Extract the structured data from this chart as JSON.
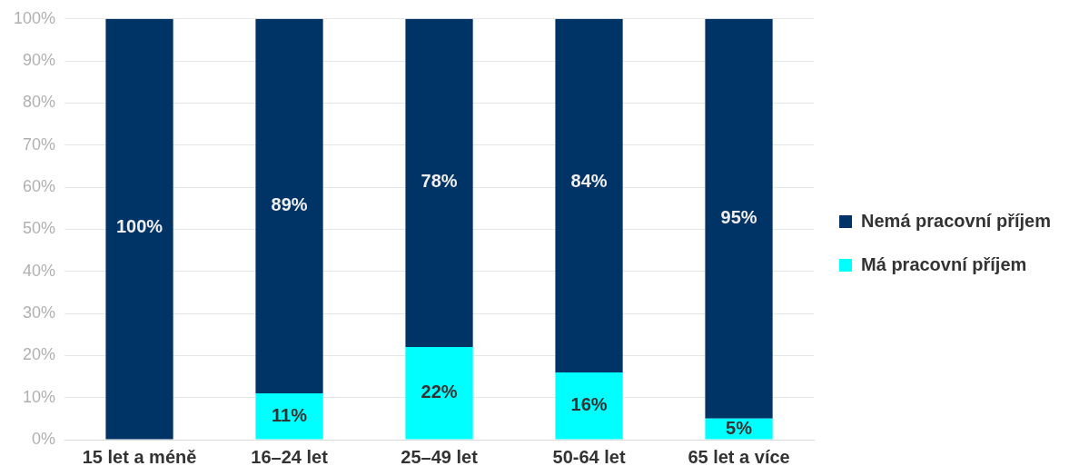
{
  "chart_data": {
    "type": "bar",
    "stacked": true,
    "categories": [
      "15 let a méně",
      "16–24 let",
      "25–49 let",
      "50-64 let",
      "65 let a více"
    ],
    "series": [
      {
        "name": "Má pracovní příjem",
        "color": "#00ffff",
        "values": [
          0,
          11,
          22,
          16,
          5
        ],
        "value_labels": [
          null,
          "11%",
          "22%",
          "16%",
          "5%"
        ]
      },
      {
        "name": "Nemá pracovní příjem",
        "color": "#003366",
        "values": [
          100,
          89,
          78,
          84,
          95
        ],
        "value_labels": [
          "100%",
          "89%",
          "78%",
          "84%",
          "95%"
        ]
      }
    ],
    "ylim": [
      0,
      100
    ],
    "yticks": [
      {
        "value": 0,
        "label": "0%"
      },
      {
        "value": 10,
        "label": "10%"
      },
      {
        "value": 20,
        "label": "20%"
      },
      {
        "value": 30,
        "label": "30%"
      },
      {
        "value": 40,
        "label": "40%"
      },
      {
        "value": 50,
        "label": "50%"
      },
      {
        "value": 60,
        "label": "60%"
      },
      {
        "value": 70,
        "label": "70%"
      },
      {
        "value": 80,
        "label": "80%"
      },
      {
        "value": 90,
        "label": "90%"
      },
      {
        "value": 100,
        "label": "100%"
      }
    ],
    "grid": "y",
    "legend": "right"
  }
}
